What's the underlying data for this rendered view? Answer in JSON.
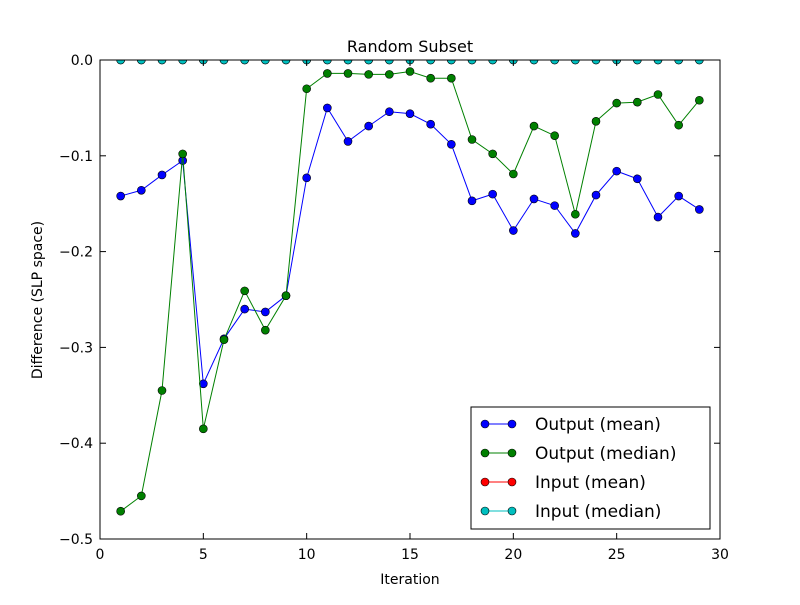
{
  "colors": {
    "output_mean": "#0000ff",
    "output_median": "#008000",
    "input_mean": "#ff0000",
    "input_median": "#00bfbf",
    "axis": "#000000",
    "background": "#ffffff"
  },
  "chart_data": {
    "type": "line",
    "title": "Random Subset",
    "xlabel": "Iteration",
    "ylabel": "Difference (SLP space)",
    "xlim": [
      0,
      30
    ],
    "ylim": [
      -0.5,
      0.0
    ],
    "xticks": [
      0,
      5,
      10,
      15,
      20,
      25,
      30
    ],
    "xtick_labels": [
      "0",
      "5",
      "10",
      "15",
      "20",
      "25",
      "30"
    ],
    "yticks": [
      0.0,
      -0.1,
      -0.2,
      -0.3,
      -0.4,
      -0.5
    ],
    "ytick_labels": [
      "0.0",
      "−0.1",
      "−0.2",
      "−0.3",
      "−0.4",
      "−0.5"
    ],
    "grid": false,
    "legend_position": "lower-right",
    "x": [
      1,
      2,
      3,
      4,
      5,
      6,
      7,
      8,
      9,
      10,
      11,
      12,
      13,
      14,
      15,
      16,
      17,
      18,
      19,
      20,
      21,
      22,
      23,
      24,
      25,
      26,
      27,
      28,
      29
    ],
    "series": [
      {
        "name": "Output (mean)",
        "color": "#0000ff",
        "marker": "circle",
        "values": [
          -0.142,
          -0.136,
          -0.12,
          -0.105,
          -0.338,
          -0.291,
          -0.26,
          -0.263,
          -0.246,
          -0.123,
          -0.05,
          -0.085,
          -0.069,
          -0.054,
          -0.056,
          -0.067,
          -0.088,
          -0.147,
          -0.14,
          -0.178,
          -0.145,
          -0.152,
          -0.181,
          -0.141,
          -0.116,
          -0.124,
          -0.164,
          -0.142,
          -0.156
        ]
      },
      {
        "name": "Output (median)",
        "color": "#008000",
        "marker": "circle",
        "values": [
          -0.471,
          -0.455,
          -0.345,
          -0.098,
          -0.385,
          -0.292,
          -0.241,
          -0.282,
          -0.246,
          -0.03,
          -0.014,
          -0.014,
          -0.015,
          -0.015,
          -0.012,
          -0.019,
          -0.019,
          -0.083,
          -0.098,
          -0.119,
          -0.069,
          -0.079,
          -0.161,
          -0.064,
          -0.045,
          -0.044,
          -0.036,
          -0.068,
          -0.042
        ]
      },
      {
        "name": "Input (mean)",
        "color": "#ff0000",
        "marker": "circle",
        "values": [
          0,
          0,
          0,
          0,
          0,
          0,
          0,
          0,
          0,
          0,
          0,
          0,
          0,
          0,
          0,
          0,
          0,
          0,
          0,
          0,
          0,
          0,
          0,
          0,
          0,
          0,
          0,
          0,
          0
        ]
      },
      {
        "name": "Input (median)",
        "color": "#00bfbf",
        "marker": "circle",
        "values": [
          0,
          0,
          0,
          0,
          0,
          0,
          0,
          0,
          0,
          0,
          0,
          0,
          0,
          0,
          0,
          0,
          0,
          0,
          0,
          0,
          0,
          0,
          0,
          0,
          0,
          0,
          0,
          0,
          0
        ]
      }
    ]
  }
}
